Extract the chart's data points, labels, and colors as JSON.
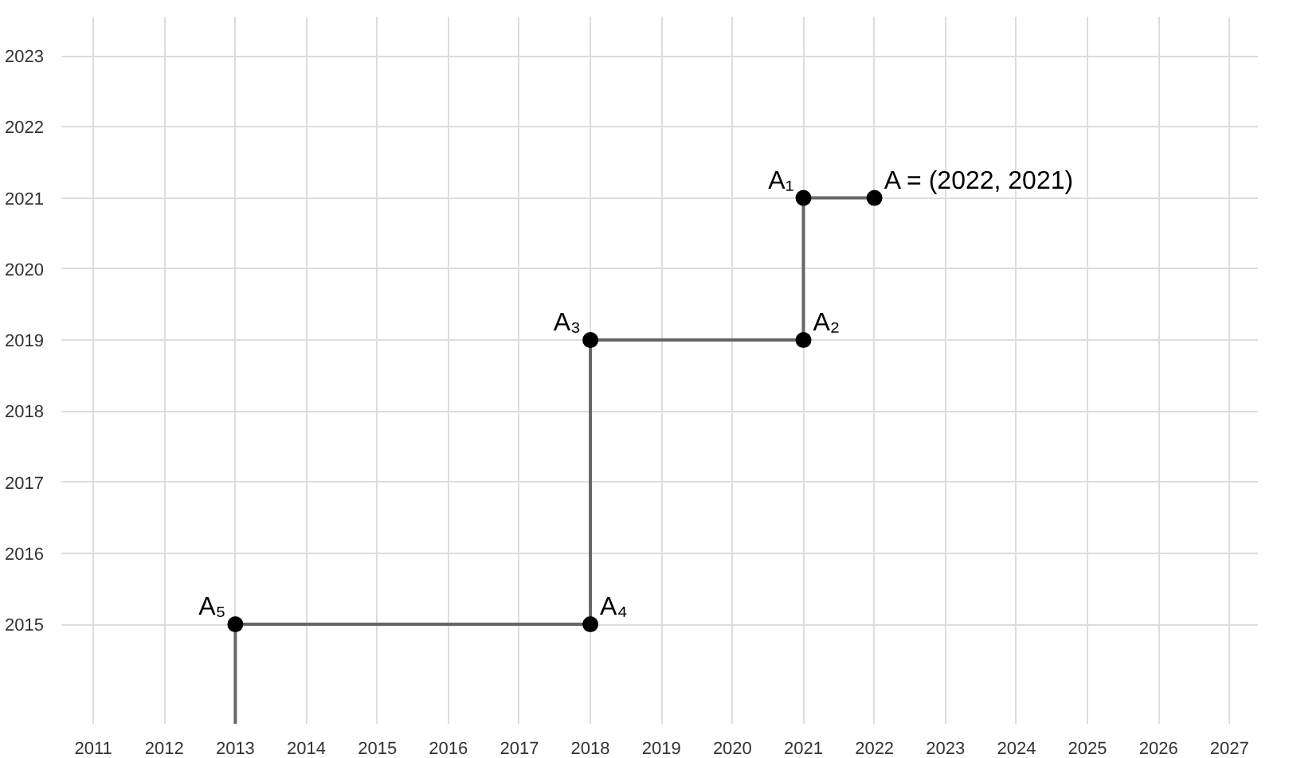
{
  "chart_data": {
    "type": "line",
    "xlim": [
      2010.55,
      2027.4
    ],
    "ylim": [
      2013.6,
      2023.55
    ],
    "xticks": [
      2011,
      2012,
      2013,
      2014,
      2015,
      2016,
      2017,
      2018,
      2019,
      2020,
      2021,
      2022,
      2023,
      2024,
      2025,
      2026,
      2027
    ],
    "yticks": [
      2015,
      2016,
      2017,
      2018,
      2019,
      2020,
      2021,
      2022,
      2023
    ],
    "grid": true,
    "series": [
      {
        "color": "#666666",
        "marker": "none",
        "x": [
          2022,
          2021,
          2021,
          2018,
          2018,
          2013,
          2013
        ],
        "values": [
          2021,
          2021,
          2019,
          2019,
          2015,
          2015,
          2013.6
        ]
      },
      {
        "type": "scatter",
        "color": "#000000",
        "marker": "circle",
        "x": [
          2022,
          2021,
          2021,
          2018,
          2018,
          2013
        ],
        "values": [
          2021,
          2021,
          2019,
          2019,
          2015,
          2015
        ]
      }
    ],
    "annotations": [
      {
        "text": "A = (2022, 2021)",
        "x": 2022,
        "y": 2021
      },
      {
        "text": "A₁",
        "x": 2021,
        "y": 2021
      },
      {
        "text": "A₂",
        "x": 2021,
        "y": 2019
      },
      {
        "text": "A₃",
        "x": 2018,
        "y": 2019
      },
      {
        "text": "A₄",
        "x": 2018,
        "y": 2015
      },
      {
        "text": "A₅",
        "x": 2013,
        "y": 2015
      }
    ]
  }
}
